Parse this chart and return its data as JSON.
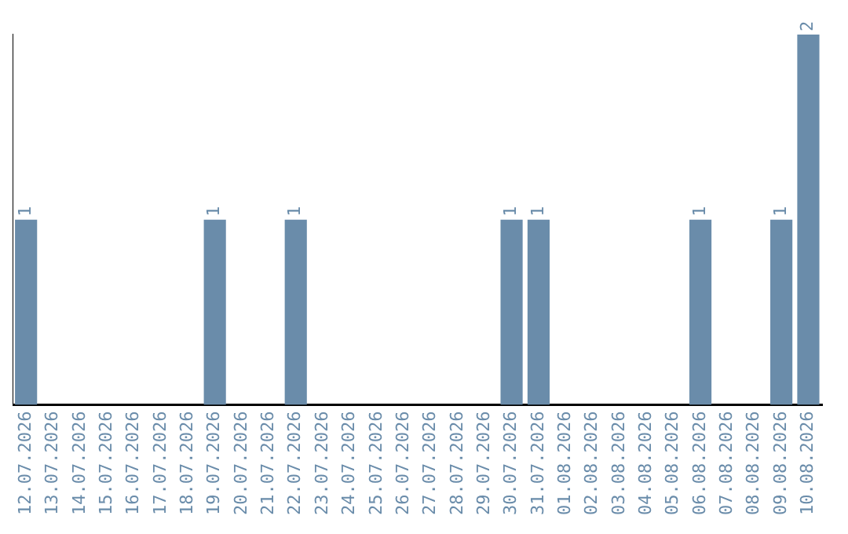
{
  "chart_data": {
    "type": "bar",
    "categories": [
      "12.07.2026",
      "13.07.2026",
      "14.07.2026",
      "15.07.2026",
      "16.07.2026",
      "17.07.2026",
      "18.07.2026",
      "19.07.2026",
      "20.07.2026",
      "21.07.2026",
      "22.07.2026",
      "23.07.2026",
      "24.07.2026",
      "25.07.2026",
      "26.07.2026",
      "27.07.2026",
      "28.07.2026",
      "29.07.2026",
      "30.07.2026",
      "31.07.2026",
      "01.08.2026",
      "02.08.2026",
      "03.08.2026",
      "04.08.2026",
      "05.08.2026",
      "06.08.2026",
      "07.08.2026",
      "08.08.2026",
      "09.08.2026",
      "10.08.2026"
    ],
    "values": [
      1,
      0,
      0,
      0,
      0,
      0,
      0,
      1,
      0,
      0,
      1,
      0,
      0,
      0,
      0,
      0,
      0,
      0,
      1,
      1,
      0,
      0,
      0,
      0,
      0,
      1,
      0,
      0,
      1,
      2
    ],
    "value_labels": [
      "1",
      null,
      null,
      null,
      null,
      null,
      null,
      "1",
      null,
      null,
      "1",
      null,
      null,
      null,
      null,
      null,
      null,
      null,
      "1",
      "1",
      null,
      null,
      null,
      null,
      null,
      "1",
      null,
      null,
      "1",
      "2"
    ],
    "color": "#6a8caa",
    "grid": false,
    "legend": false,
    "tick_labels": "x"
  }
}
